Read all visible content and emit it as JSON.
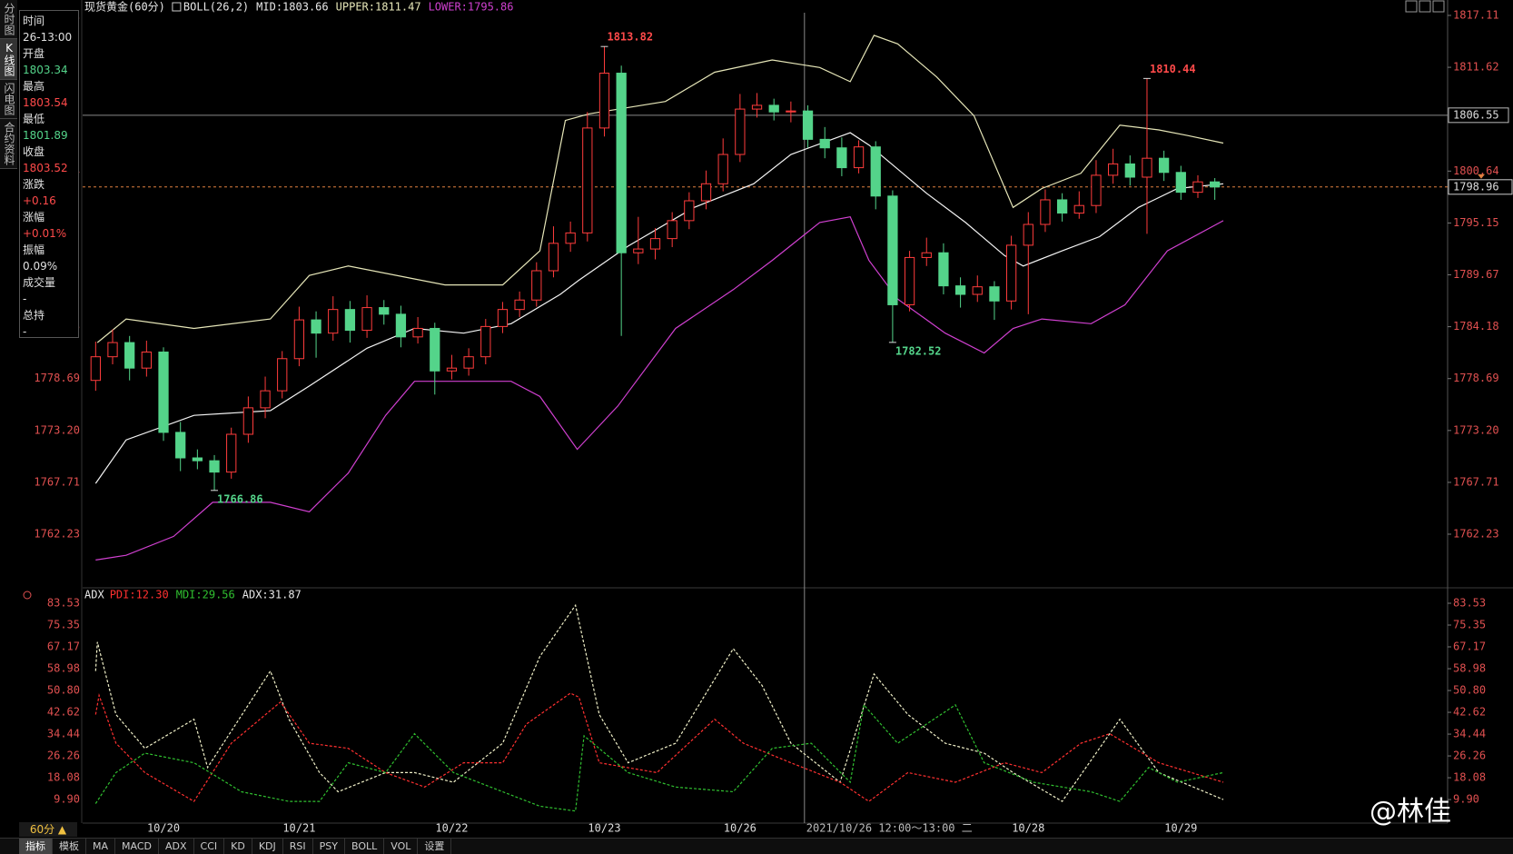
{
  "toolbar": {
    "title": "现货黄金(60分)",
    "indicator": "BOLL(26,2)",
    "items": [
      "MID:1803.66",
      "UPPER:1811.47",
      "LOWER:1795.86"
    ]
  },
  "side_tabs": [
    "分时图",
    "K线图",
    "闪电图",
    "合约资料"
  ],
  "info_panel": [
    {
      "label": "时间",
      "value": "26-13:00",
      "color": "#e0e0e0"
    },
    {
      "label": "开盘",
      "value": "1803.34",
      "color": "#54d48a"
    },
    {
      "label": "最高",
      "value": "1803.54",
      "color": "#ff4a4a"
    },
    {
      "label": "最低",
      "value": "1801.89",
      "color": "#54d48a"
    },
    {
      "label": "收盘",
      "value": "1803.52",
      "color": "#ff4a4a"
    },
    {
      "label": "涨跌",
      "value": "+0.16",
      "color": "#ff4a4a"
    },
    {
      "label": "涨幅",
      "value": "+0.01%",
      "color": "#ff4a4a"
    },
    {
      "label": "振幅",
      "value": "0.09%",
      "color": "#e0e0e0"
    },
    {
      "label": "成交量",
      "value": "-",
      "color": "#e0e0e0"
    },
    {
      "label": "总持",
      "value": "-",
      "color": "#e0e0e0"
    }
  ],
  "chart_data": [
    {
      "type": "candlestick",
      "up_color": "#ff3c3c",
      "down_color": "#54d48a",
      "categories": [
        null,
        null,
        null,
        null,
        "10/20",
        null,
        null,
        null,
        null,
        null,
        null,
        null,
        "10/21",
        null,
        null,
        null,
        null,
        null,
        null,
        null,
        null,
        "10/22",
        null,
        null,
        null,
        null,
        null,
        null,
        null,
        null,
        "10/23",
        null,
        null,
        null,
        null,
        null,
        null,
        null,
        "10/26",
        null,
        null,
        null,
        null,
        null,
        null,
        null,
        null,
        null,
        null,
        null,
        null,
        null,
        null,
        null,
        null,
        "10/28",
        null,
        null,
        null,
        null,
        null,
        null,
        null,
        null,
        "10/29",
        null,
        null
      ],
      "open": [
        1778.5,
        1781.0,
        1782.5,
        1779.8,
        1781.5,
        1773.0,
        1770.3,
        1770.0,
        1768.8,
        1772.8,
        1775.6,
        1777.4,
        1780.8,
        1784.9,
        1783.5,
        1786.0,
        1783.8,
        1786.2,
        1785.5,
        1783.1,
        1784.0,
        1779.5,
        1779.8,
        1781.0,
        1784.2,
        1786.0,
        1787.0,
        1790.1,
        1793.0,
        1794.1,
        1805.2,
        1811.0,
        1792.0,
        1792.4,
        1793.5,
        1795.4,
        1797.5,
        1799.3,
        1802.4,
        1807.2,
        1807.6,
        1806.9,
        1807.0,
        1804.0,
        1803.1,
        1801.0,
        1803.2,
        1798.0,
        1786.5,
        1791.5,
        1792.0,
        1788.5,
        1787.6,
        1788.4,
        1786.9,
        1792.8,
        1795.0,
        1797.6,
        1796.2,
        1797.0,
        1800.2,
        1801.4,
        1800.0,
        1802.0,
        1800.5,
        1798.4,
        1799.5
      ],
      "high": [
        1782.6,
        1783.9,
        1783.2,
        1782.7,
        1782.0,
        1774.1,
        1771.2,
        1770.6,
        1773.5,
        1776.8,
        1778.9,
        1781.6,
        1786.3,
        1785.8,
        1787.4,
        1786.9,
        1787.5,
        1787.0,
        1786.4,
        1785.2,
        1784.6,
        1781.2,
        1781.9,
        1785.0,
        1786.8,
        1787.9,
        1791.0,
        1794.8,
        1795.3,
        1806.9,
        1813.82,
        1811.8,
        1795.8,
        1794.6,
        1796.3,
        1798.4,
        1800.7,
        1804.1,
        1808.8,
        1808.9,
        1808.3,
        1808.0,
        1807.6,
        1805.3,
        1804.2,
        1803.9,
        1803.8,
        1798.6,
        1792.2,
        1793.6,
        1793.0,
        1789.4,
        1789.6,
        1789.0,
        1793.8,
        1796.3,
        1798.7,
        1798.3,
        1798.5,
        1801.8,
        1803.0,
        1802.3,
        1810.44,
        1802.8,
        1801.2,
        1800.2,
        1799.9
      ],
      "low": [
        1777.4,
        1780.2,
        1778.5,
        1778.9,
        1772.1,
        1768.9,
        1769.1,
        1766.86,
        1768.1,
        1771.9,
        1774.5,
        1776.6,
        1780.0,
        1780.9,
        1782.7,
        1782.5,
        1783.0,
        1784.4,
        1782.0,
        1782.4,
        1777.0,
        1778.6,
        1779.0,
        1780.2,
        1783.5,
        1785.2,
        1786.3,
        1789.4,
        1792.1,
        1793.2,
        1804.3,
        1783.2,
        1790.8,
        1791.3,
        1792.6,
        1794.5,
        1796.6,
        1798.5,
        1801.6,
        1806.3,
        1806.0,
        1805.8,
        1803.1,
        1802.0,
        1800.1,
        1800.4,
        1796.6,
        1782.52,
        1785.8,
        1790.6,
        1787.6,
        1786.2,
        1786.8,
        1784.9,
        1786.0,
        1785.5,
        1794.2,
        1795.3,
        1795.6,
        1796.2,
        1799.3,
        1799.1,
        1794.0,
        1799.6,
        1797.6,
        1797.8,
        1797.6
      ],
      "close": [
        1781.0,
        1782.5,
        1779.8,
        1781.5,
        1773.0,
        1770.3,
        1770.0,
        1768.8,
        1772.8,
        1775.6,
        1777.4,
        1780.8,
        1784.9,
        1783.5,
        1786.0,
        1783.8,
        1786.2,
        1785.5,
        1783.1,
        1784.0,
        1779.5,
        1779.8,
        1781.0,
        1784.2,
        1786.0,
        1787.0,
        1790.1,
        1793.0,
        1794.1,
        1805.2,
        1811.0,
        1792.0,
        1792.4,
        1793.5,
        1795.4,
        1797.5,
        1799.3,
        1802.4,
        1807.2,
        1807.6,
        1806.9,
        1807.0,
        1804.0,
        1803.1,
        1801.0,
        1803.2,
        1798.0,
        1786.5,
        1791.5,
        1792.0,
        1788.5,
        1787.6,
        1788.4,
        1786.9,
        1792.8,
        1795.0,
        1797.6,
        1796.2,
        1797.0,
        1800.2,
        1801.4,
        1800.0,
        1802.0,
        1800.5,
        1798.4,
        1799.5,
        1798.96
      ],
      "series": [
        {
          "name": "UPPER",
          "color": "#e6e6b8",
          "x": [
            0.1,
            1.8,
            5.8,
            10.3,
            12.6,
            14.9,
            20.6,
            24.0,
            26.2,
            27.7,
            29.1,
            33.6,
            36.5,
            39.9,
            42.7,
            44.5,
            45.9,
            47.3,
            49.6,
            51.8,
            54.1,
            55.8,
            58.1,
            60.4,
            62.7,
            64.4,
            66.5
          ],
          "values": [
            1782.5,
            1785.0,
            1784.0,
            1785.0,
            1789.6,
            1790.6,
            1788.6,
            1788.6,
            1792.2,
            1806.0,
            1806.7,
            1808.0,
            1811.1,
            1812.4,
            1811.6,
            1810.1,
            1815.0,
            1814.1,
            1810.6,
            1806.5,
            1796.8,
            1798.8,
            1800.4,
            1805.5,
            1805.0,
            1804.4,
            1803.6
          ]
        },
        {
          "name": "MID",
          "color": "#f4f4f4",
          "x": [
            0.0,
            1.8,
            5.8,
            10.3,
            12.6,
            16.0,
            18.8,
            21.7,
            24.5,
            27.4,
            28.5,
            31.4,
            35.3,
            38.8,
            41.0,
            44.5,
            45.6,
            49.0,
            51.3,
            53.6,
            54.7,
            57.0,
            59.2,
            61.5,
            63.8,
            66.5
          ],
          "values": [
            1767.6,
            1772.2,
            1774.8,
            1775.3,
            1777.9,
            1781.9,
            1784.0,
            1783.5,
            1784.5,
            1787.6,
            1789.1,
            1792.7,
            1796.8,
            1799.3,
            1802.4,
            1804.7,
            1803.4,
            1798.3,
            1795.2,
            1791.7,
            1790.6,
            1792.2,
            1793.7,
            1796.8,
            1798.8,
            1799.3
          ]
        },
        {
          "name": "LOWER",
          "color": "#d040d0",
          "x": [
            0.0,
            1.8,
            4.6,
            6.9,
            10.3,
            12.6,
            14.9,
            17.1,
            18.8,
            21.7,
            24.5,
            26.2,
            28.4,
            30.8,
            34.2,
            37.6,
            39.9,
            42.7,
            44.5,
            45.6,
            47.3,
            50.1,
            52.4,
            54.1,
            55.8,
            58.7,
            60.7,
            63.2,
            66.5
          ],
          "values": [
            1759.5,
            1760.0,
            1762.0,
            1765.6,
            1765.6,
            1764.6,
            1768.7,
            1774.8,
            1778.4,
            1778.4,
            1778.4,
            1776.8,
            1771.2,
            1775.8,
            1784.0,
            1788.1,
            1791.2,
            1795.2,
            1795.8,
            1791.2,
            1787.1,
            1783.5,
            1781.4,
            1784.0,
            1785.0,
            1784.5,
            1786.5,
            1792.2,
            1795.4
          ]
        }
      ],
      "annotations": [
        {
          "x": 30,
          "value": 1813.82
        },
        {
          "x": 62,
          "value": 1810.44
        },
        {
          "x": 47,
          "value": 1782.52
        },
        {
          "x": 7,
          "value": 1766.86
        }
      ],
      "crosshair": {
        "x": 41.8,
        "value": 1806.55,
        "label": "2021/10/26 12:00～13:00 二"
      },
      "last_price": 1798.96,
      "ylim": [
        1756.75,
        1818.74
      ],
      "yticks": [
        1817.11,
        1811.62,
        1800.64,
        1795.15,
        1789.67,
        1784.18,
        1778.69,
        {
          "value": 1773.2,
          "label": "1773.20"
        },
        1767.71,
        1762.23
      ]
    },
    {
      "type": "line",
      "title": "ADX",
      "legend": [
        {
          "text": "PDI:12.30",
          "color": "#ff3030"
        },
        {
          "text": "MDI:29.56",
          "color": "#30c030"
        },
        {
          "text": "ADX:31.87",
          "color": "#e8e8e8"
        }
      ],
      "series": [
        {
          "name": "ADX",
          "color": "#f0f0c8",
          "x": [
            0.0,
            0.1,
            1.2,
            2.9,
            5.8,
            6.6,
            10.3,
            11.4,
            13.2,
            14.3,
            17.1,
            18.8,
            21.1,
            24.0,
            26.2,
            28.3,
            29.7,
            31.4,
            34.2,
            37.6,
            39.3,
            41.0,
            43.9,
            45.9,
            47.9,
            50.1,
            52.4,
            54.1,
            57.0,
            60.4,
            62.7,
            66.5
          ],
          "values": [
            58.1,
            69.0,
            41.8,
            29.1,
            40.0,
            21.9,
            58.1,
            40.0,
            20.0,
            12.8,
            20.0,
            20.0,
            16.4,
            31.0,
            63.6,
            82.8,
            41.8,
            23.7,
            31.0,
            66.5,
            52.7,
            31.0,
            16.4,
            57.0,
            41.8,
            31.0,
            27.3,
            20.0,
            9.2,
            40.0,
            20.0,
            9.9
          ]
        },
        {
          "name": "PDI",
          "color": "#ff3030",
          "x": [
            0.0,
            0.2,
            1.2,
            2.9,
            5.8,
            8.0,
            10.9,
            12.6,
            14.9,
            17.1,
            19.4,
            21.7,
            24.0,
            25.4,
            28.0,
            28.5,
            29.7,
            33.1,
            36.5,
            38.2,
            41.0,
            43.9,
            45.6,
            47.9,
            50.7,
            53.6,
            55.8,
            58.1,
            59.8,
            62.7,
            66.5
          ],
          "values": [
            41.8,
            49.0,
            31.0,
            20.0,
            9.2,
            31.0,
            46.5,
            31.0,
            29.1,
            20.0,
            14.6,
            23.7,
            23.7,
            38.2,
            49.8,
            48.3,
            23.7,
            20.0,
            40.0,
            31.0,
            23.7,
            16.4,
            9.2,
            20.0,
            16.4,
            23.7,
            20.0,
            31.0,
            34.6,
            23.7,
            16.4
          ]
        },
        {
          "name": "MDI",
          "color": "#30c030",
          "x": [
            0.0,
            1.2,
            2.9,
            5.8,
            8.6,
            11.4,
            13.2,
            14.9,
            17.1,
            18.8,
            21.1,
            24.0,
            26.2,
            28.3,
            28.8,
            31.4,
            34.2,
            37.6,
            39.9,
            42.2,
            44.5,
            45.3,
            47.3,
            50.7,
            52.4,
            55.3,
            58.7,
            60.4,
            62.1,
            63.8,
            66.5
          ],
          "values": [
            8.4,
            20.0,
            27.3,
            23.7,
            12.8,
            9.2,
            9.2,
            23.7,
            20.0,
            34.6,
            20.0,
            12.8,
            7.4,
            5.6,
            33.8,
            20.0,
            14.6,
            12.8,
            29.1,
            31.0,
            16.4,
            45.4,
            31.0,
            45.4,
            23.7,
            16.4,
            12.8,
            9.2,
            21.9,
            16.4,
            20.0
          ]
        }
      ],
      "ylim": [
        1.4,
        86.6
      ],
      "yticks": [
        83.53,
        75.35,
        67.17,
        58.98,
        {
          "value": 50.8,
          "label": "50.80"
        },
        42.62,
        34.44,
        26.26,
        18.08,
        {
          "value": 9.9,
          "label": "9.90"
        }
      ]
    }
  ],
  "period": "60分 ▲",
  "bottom_tabs": [
    "指标",
    "模板",
    "MA",
    "MACD",
    "ADX",
    "CCI",
    "KD",
    "KDJ",
    "RSI",
    "PSY",
    "BOLL",
    "VOL",
    "设置"
  ],
  "watermark": "@林佳"
}
